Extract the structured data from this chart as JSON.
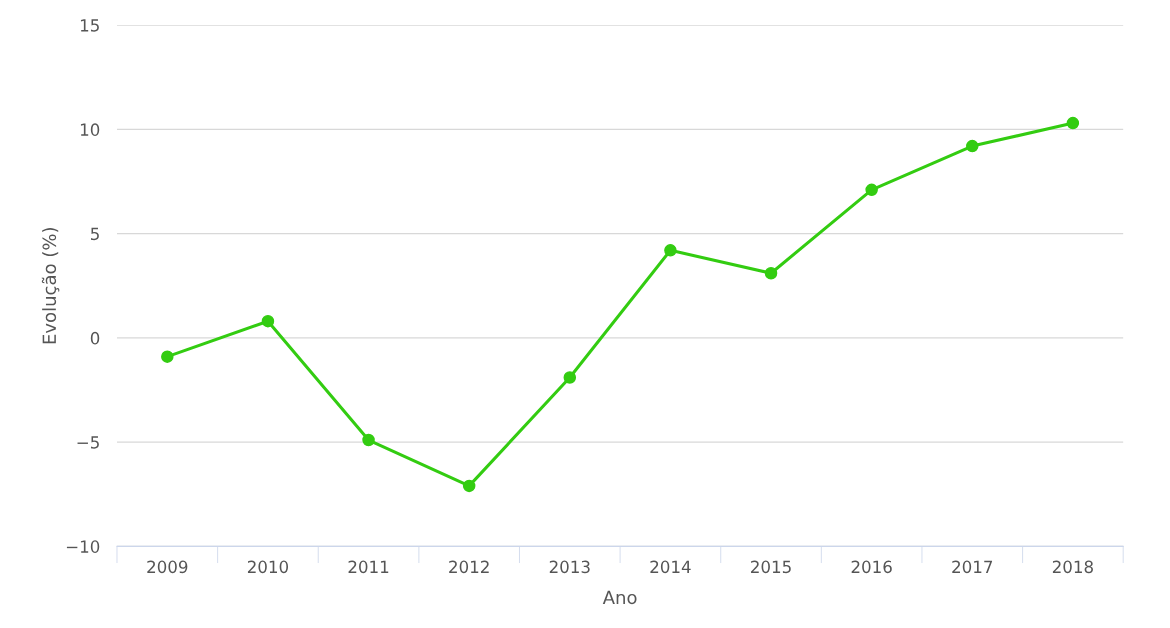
{
  "chart_data": {
    "type": "line",
    "xlabel": "Ano",
    "ylabel": "Evolução (%)",
    "categories": [
      "2009",
      "2010",
      "2011",
      "2012",
      "2013",
      "2014",
      "2015",
      "2016",
      "2017",
      "2018"
    ],
    "series": [
      {
        "color": "#33cc11",
        "values": [
          -0.9,
          0.8,
          -4.9,
          -7.1,
          -1.9,
          4.2,
          3.1,
          7.1,
          9.2,
          10.3
        ]
      }
    ],
    "ylim": [
      -10,
      15
    ],
    "yticks": [
      {
        "value": -10,
        "label": "−10"
      },
      {
        "value": -5,
        "label": "−5"
      },
      0,
      5,
      10,
      15
    ],
    "grid": "y",
    "marker": "circle",
    "line_style": "solid",
    "legend": false
  }
}
